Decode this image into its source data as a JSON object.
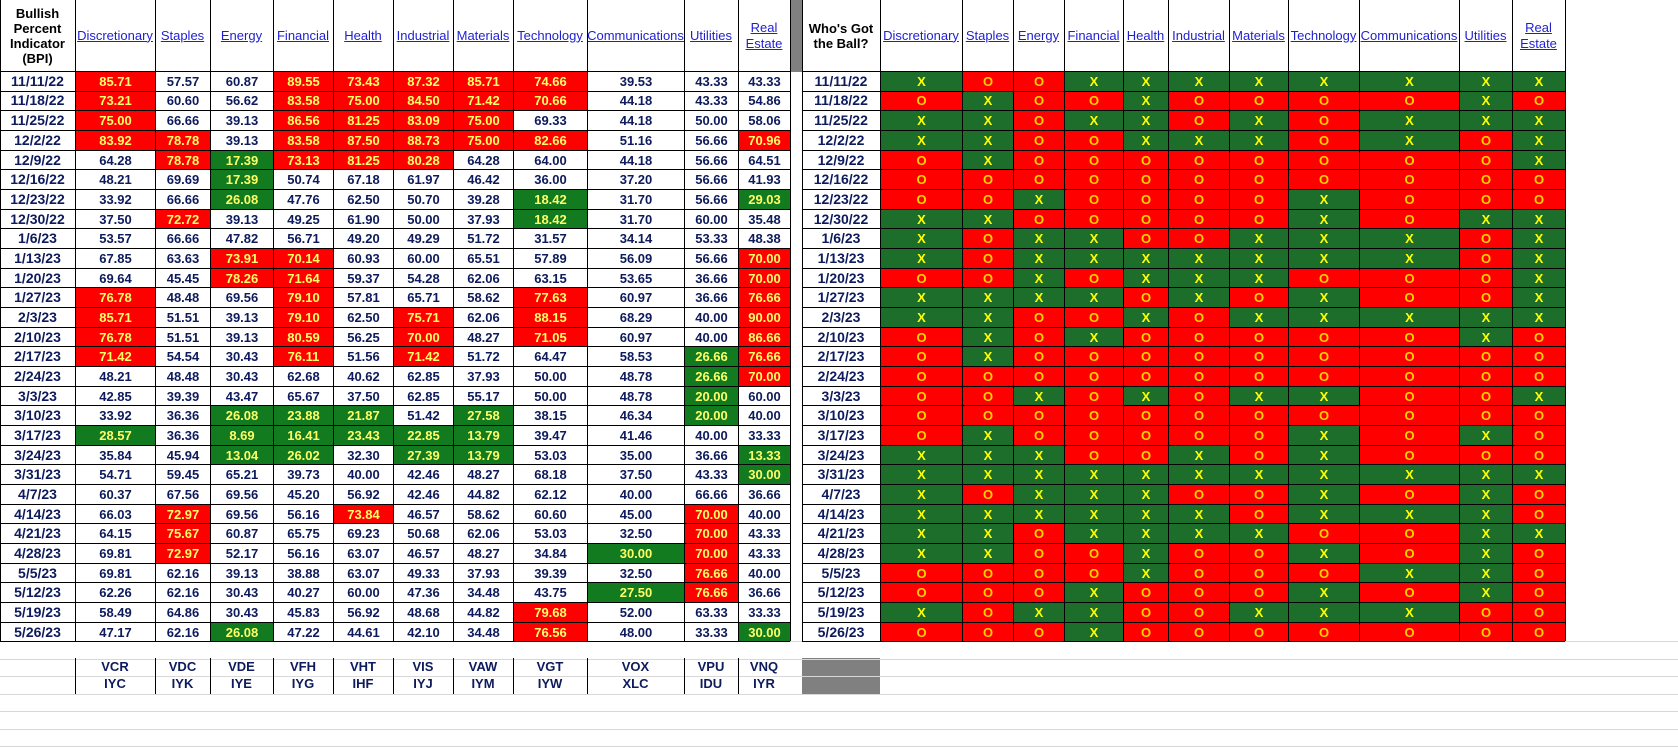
{
  "left_title": "Bullish Percent Indicator (BPI)",
  "right_title": "Who's Got the Ball?",
  "sectors": [
    "Discretionary",
    "Staples",
    "Energy",
    "Financial",
    "Health",
    "Industrial",
    "Materials",
    "Technology",
    "Communications",
    "Utilities",
    "Real Estate"
  ],
  "tickers_row1": [
    "VCR",
    "VDC",
    "VDE",
    "VFH",
    "VHT",
    "VIS",
    "VAW",
    "VGT",
    "VOX",
    "VPU",
    "VNQ"
  ],
  "tickers_row2": [
    "IYC",
    "IYK",
    "IYE",
    "IYG",
    "IHF",
    "IYJ",
    "IYM",
    "IYW",
    "XLC",
    "IDU",
    "IYR"
  ],
  "colors": {
    "red": "#ff0000",
    "green": "#127a1f",
    "x_fill": "#1d6e2b",
    "header_link": "#1f1fd0",
    "value_text": "#0d1a5c"
  },
  "bpi_rows": [
    {
      "date": "11/11/22",
      "vals": [
        "85.71",
        "57.57",
        "60.87",
        "89.55",
        "73.43",
        "87.32",
        "85.71",
        "74.66",
        "39.53",
        "43.33",
        "43.33"
      ],
      "fill": [
        "r",
        "",
        "",
        "r",
        "r",
        "r",
        "r",
        "r",
        "",
        "",
        ""
      ]
    },
    {
      "date": "11/18/22",
      "vals": [
        "73.21",
        "60.60",
        "56.62",
        "83.58",
        "75.00",
        "84.50",
        "71.42",
        "70.66",
        "44.18",
        "43.33",
        "54.86"
      ],
      "fill": [
        "r",
        "",
        "",
        "r",
        "r",
        "r",
        "r",
        "r",
        "",
        "",
        ""
      ]
    },
    {
      "date": "11/25/22",
      "vals": [
        "75.00",
        "66.66",
        "39.13",
        "86.56",
        "81.25",
        "83.09",
        "75.00",
        "69.33",
        "44.18",
        "50.00",
        "58.06"
      ],
      "fill": [
        "r",
        "",
        "",
        "r",
        "r",
        "r",
        "r",
        "",
        "",
        "",
        ""
      ]
    },
    {
      "date": "12/2/22",
      "vals": [
        "83.92",
        "78.78",
        "39.13",
        "83.58",
        "87.50",
        "88.73",
        "75.00",
        "82.66",
        "51.16",
        "56.66",
        "70.96"
      ],
      "fill": [
        "r",
        "r",
        "",
        "r",
        "r",
        "r",
        "r",
        "r",
        "",
        "",
        "r"
      ]
    },
    {
      "date": "12/9/22",
      "vals": [
        "64.28",
        "78.78",
        "17.39",
        "73.13",
        "81.25",
        "80.28",
        "64.28",
        "64.00",
        "44.18",
        "56.66",
        "64.51"
      ],
      "fill": [
        "",
        "r",
        "g",
        "r",
        "r",
        "r",
        "",
        "",
        "",
        "",
        ""
      ]
    },
    {
      "date": "12/16/22",
      "vals": [
        "48.21",
        "69.69",
        "17.39",
        "50.74",
        "67.18",
        "61.97",
        "46.42",
        "36.00",
        "37.20",
        "56.66",
        "41.93"
      ],
      "fill": [
        "",
        "",
        "g",
        "",
        "",
        "",
        "",
        "",
        "",
        "",
        ""
      ]
    },
    {
      "date": "12/23/22",
      "vals": [
        "33.92",
        "66.66",
        "26.08",
        "47.76",
        "62.50",
        "50.70",
        "39.28",
        "18.42",
        "31.70",
        "56.66",
        "29.03"
      ],
      "fill": [
        "",
        "",
        "g",
        "",
        "",
        "",
        "",
        "g",
        "",
        "",
        "g"
      ]
    },
    {
      "date": "12/30/22",
      "vals": [
        "37.50",
        "72.72",
        "39.13",
        "49.25",
        "61.90",
        "50.00",
        "37.93",
        "18.42",
        "31.70",
        "60.00",
        "35.48"
      ],
      "fill": [
        "",
        "r",
        "",
        "",
        "",
        "",
        "",
        "g",
        "",
        "",
        ""
      ]
    },
    {
      "date": "1/6/23",
      "vals": [
        "53.57",
        "66.66",
        "47.82",
        "56.71",
        "49.20",
        "49.29",
        "51.72",
        "31.57",
        "34.14",
        "53.33",
        "48.38"
      ],
      "fill": [
        "",
        "",
        "",
        "",
        "",
        "",
        "",
        "",
        "",
        "",
        ""
      ]
    },
    {
      "date": "1/13/23",
      "vals": [
        "67.85",
        "63.63",
        "73.91",
        "70.14",
        "60.93",
        "60.00",
        "65.51",
        "57.89",
        "56.09",
        "56.66",
        "70.00"
      ],
      "fill": [
        "",
        "",
        "r",
        "r",
        "",
        "",
        "",
        "",
        "",
        "",
        "r"
      ]
    },
    {
      "date": "1/20/23",
      "vals": [
        "69.64",
        "45.45",
        "78.26",
        "71.64",
        "59.37",
        "54.28",
        "62.06",
        "63.15",
        "53.65",
        "36.66",
        "70.00"
      ],
      "fill": [
        "",
        "",
        "r",
        "r",
        "",
        "",
        "",
        "",
        "",
        "",
        "r"
      ]
    },
    {
      "date": "1/27/23",
      "vals": [
        "76.78",
        "48.48",
        "69.56",
        "79.10",
        "57.81",
        "65.71",
        "58.62",
        "77.63",
        "60.97",
        "36.66",
        "76.66"
      ],
      "fill": [
        "r",
        "",
        "",
        "r",
        "",
        "",
        "",
        "r",
        "",
        "",
        "r"
      ]
    },
    {
      "date": "2/3/23",
      "vals": [
        "85.71",
        "51.51",
        "39.13",
        "79.10",
        "62.50",
        "75.71",
        "62.06",
        "88.15",
        "68.29",
        "40.00",
        "90.00"
      ],
      "fill": [
        "r",
        "",
        "",
        "r",
        "",
        "r",
        "",
        "r",
        "",
        "",
        "r"
      ]
    },
    {
      "date": "2/10/23",
      "vals": [
        "76.78",
        "51.51",
        "39.13",
        "80.59",
        "56.25",
        "70.00",
        "48.27",
        "71.05",
        "60.97",
        "40.00",
        "86.66"
      ],
      "fill": [
        "r",
        "",
        "",
        "r",
        "",
        "r",
        "",
        "r",
        "",
        "",
        "r"
      ]
    },
    {
      "date": "2/17/23",
      "vals": [
        "71.42",
        "54.54",
        "30.43",
        "76.11",
        "51.56",
        "71.42",
        "51.72",
        "64.47",
        "58.53",
        "26.66",
        "76.66"
      ],
      "fill": [
        "r",
        "",
        "",
        "r",
        "",
        "r",
        "",
        "",
        "",
        "g",
        "r"
      ]
    },
    {
      "date": "2/24/23",
      "vals": [
        "48.21",
        "48.48",
        "30.43",
        "62.68",
        "40.62",
        "62.85",
        "37.93",
        "50.00",
        "48.78",
        "26.66",
        "70.00"
      ],
      "fill": [
        "",
        "",
        "",
        "",
        "",
        "",
        "",
        "",
        "",
        "g",
        "r"
      ]
    },
    {
      "date": "3/3/23",
      "vals": [
        "42.85",
        "39.39",
        "43.47",
        "65.67",
        "37.50",
        "62.85",
        "55.17",
        "50.00",
        "48.78",
        "20.00",
        "60.00"
      ],
      "fill": [
        "",
        "",
        "",
        "",
        "",
        "",
        "",
        "",
        "",
        "g",
        ""
      ]
    },
    {
      "date": "3/10/23",
      "vals": [
        "33.92",
        "36.36",
        "26.08",
        "23.88",
        "21.87",
        "51.42",
        "27.58",
        "38.15",
        "46.34",
        "20.00",
        "40.00"
      ],
      "fill": [
        "",
        "",
        "g",
        "g",
        "g",
        "",
        "g",
        "",
        "",
        "g",
        ""
      ]
    },
    {
      "date": "3/17/23",
      "vals": [
        "28.57",
        "36.36",
        "8.69",
        "16.41",
        "23.43",
        "22.85",
        "13.79",
        "39.47",
        "41.46",
        "40.00",
        "33.33"
      ],
      "fill": [
        "g",
        "",
        "g",
        "g",
        "g",
        "g",
        "g",
        "",
        "",
        "",
        ""
      ]
    },
    {
      "date": "3/24/23",
      "vals": [
        "35.84",
        "45.94",
        "13.04",
        "26.02",
        "32.30",
        "27.39",
        "13.79",
        "53.03",
        "35.00",
        "36.66",
        "13.33"
      ],
      "fill": [
        "",
        "",
        "g",
        "g",
        "",
        "g",
        "g",
        "",
        "",
        "",
        "g"
      ]
    },
    {
      "date": "3/31/23",
      "vals": [
        "54.71",
        "59.45",
        "65.21",
        "39.73",
        "40.00",
        "42.46",
        "48.27",
        "68.18",
        "37.50",
        "43.33",
        "30.00"
      ],
      "fill": [
        "",
        "",
        "",
        "",
        "",
        "",
        "",
        "",
        "",
        "",
        "g"
      ]
    },
    {
      "date": "4/7/23",
      "vals": [
        "60.37",
        "67.56",
        "69.56",
        "45.20",
        "56.92",
        "42.46",
        "44.82",
        "62.12",
        "40.00",
        "66.66",
        "36.66"
      ],
      "fill": [
        "",
        "",
        "",
        "",
        "",
        "",
        "",
        "",
        "",
        "",
        ""
      ]
    },
    {
      "date": "4/14/23",
      "vals": [
        "66.03",
        "72.97",
        "69.56",
        "56.16",
        "73.84",
        "46.57",
        "58.62",
        "60.60",
        "45.00",
        "70.00",
        "40.00"
      ],
      "fill": [
        "",
        "r",
        "",
        "",
        "r",
        "",
        "",
        "",
        "",
        "r",
        ""
      ]
    },
    {
      "date": "4/21/23",
      "vals": [
        "64.15",
        "75.67",
        "60.87",
        "65.75",
        "69.23",
        "50.68",
        "62.06",
        "53.03",
        "32.50",
        "70.00",
        "43.33"
      ],
      "fill": [
        "",
        "r",
        "",
        "",
        "",
        "",
        "",
        "",
        "",
        "r",
        ""
      ]
    },
    {
      "date": "4/28/23",
      "vals": [
        "69.81",
        "72.97",
        "52.17",
        "56.16",
        "63.07",
        "46.57",
        "48.27",
        "34.84",
        "30.00",
        "70.00",
        "43.33"
      ],
      "fill": [
        "",
        "r",
        "",
        "",
        "",
        "",
        "",
        "",
        "g",
        "r",
        ""
      ]
    },
    {
      "date": "5/5/23",
      "vals": [
        "69.81",
        "62.16",
        "39.13",
        "38.88",
        "63.07",
        "49.33",
        "37.93",
        "39.39",
        "32.50",
        "76.66",
        "40.00"
      ],
      "fill": [
        "",
        "",
        "",
        "",
        "",
        "",
        "",
        "",
        "",
        "r",
        ""
      ]
    },
    {
      "date": "5/12/23",
      "vals": [
        "62.26",
        "62.16",
        "30.43",
        "40.27",
        "60.00",
        "47.36",
        "34.48",
        "43.75",
        "27.50",
        "76.66",
        "36.66"
      ],
      "fill": [
        "",
        "",
        "",
        "",
        "",
        "",
        "",
        "",
        "g",
        "r",
        ""
      ]
    },
    {
      "date": "5/19/23",
      "vals": [
        "58.49",
        "64.86",
        "30.43",
        "45.83",
        "56.92",
        "48.68",
        "44.82",
        "79.68",
        "52.00",
        "63.33",
        "33.33"
      ],
      "fill": [
        "",
        "",
        "",
        "",
        "",
        "",
        "",
        "r",
        "",
        "",
        ""
      ]
    },
    {
      "date": "5/26/23",
      "vals": [
        "47.17",
        "62.16",
        "26.08",
        "47.22",
        "44.61",
        "42.10",
        "34.48",
        "76.56",
        "48.00",
        "33.33",
        "30.00"
      ],
      "fill": [
        "",
        "",
        "g",
        "",
        "",
        "",
        "",
        "r",
        "",
        "",
        "g"
      ]
    }
  ],
  "ball_rows": [
    {
      "date": "11/11/22",
      "marks": "XOOXXXXXXXX"
    },
    {
      "date": "11/18/22",
      "marks": "OXOOXOOOOXO"
    },
    {
      "date": "11/25/22",
      "marks": "XXOXXOXOXXX"
    },
    {
      "date": "12/2/22",
      "marks": "XXOOXXXOXOX"
    },
    {
      "date": "12/9/22",
      "marks": "OXOOOOOOOOX"
    },
    {
      "date": "12/16/22",
      "marks": "OOOOOOOOOOO"
    },
    {
      "date": "12/23/22",
      "marks": "OOXOOOOXOOO"
    },
    {
      "date": "12/30/22",
      "marks": "XXOOOOOXOXX"
    },
    {
      "date": "1/6/23",
      "marks": "XOXXOOXXXOX"
    },
    {
      "date": "1/13/23",
      "marks": "XOXXXXXXXOX"
    },
    {
      "date": "1/20/23",
      "marks": "OOXOXXXOOOX"
    },
    {
      "date": "1/27/23",
      "marks": "XXXXOXOXOOX"
    },
    {
      "date": "2/3/23",
      "marks": "XXOOXOXXXXX"
    },
    {
      "date": "2/10/23",
      "marks": "OXOXOOOOOXO"
    },
    {
      "date": "2/17/23",
      "marks": "OXOOOOOOOOO"
    },
    {
      "date": "2/24/23",
      "marks": "OOOOOOOOOOO"
    },
    {
      "date": "3/3/23",
      "marks": "OOXOXOXXOOX"
    },
    {
      "date": "3/10/23",
      "marks": "OOOOOOOOOOO"
    },
    {
      "date": "3/17/23",
      "marks": "OXOOOOOXOXO"
    },
    {
      "date": "3/24/23",
      "marks": "XXXOOXOXOOO"
    },
    {
      "date": "3/31/23",
      "marks": "XXXXXXXXXXX"
    },
    {
      "date": "4/7/23",
      "marks": "XOXXXOOXOXO"
    },
    {
      "date": "4/14/23",
      "marks": "XXXXXXOXXXO"
    },
    {
      "date": "4/21/23",
      "marks": "XXOXXXXOOXX"
    },
    {
      "date": "4/28/23",
      "marks": "XXOOXOOXOXO"
    },
    {
      "date": "5/5/23",
      "marks": "OOOOXOOOXXO"
    },
    {
      "date": "5/12/23",
      "marks": "OOOXOOOXOXO"
    },
    {
      "date": "5/19/23",
      "marks": "XOXXOOXXXOO"
    },
    {
      "date": "5/26/23",
      "marks": "OOOXOOOOOOO"
    }
  ]
}
